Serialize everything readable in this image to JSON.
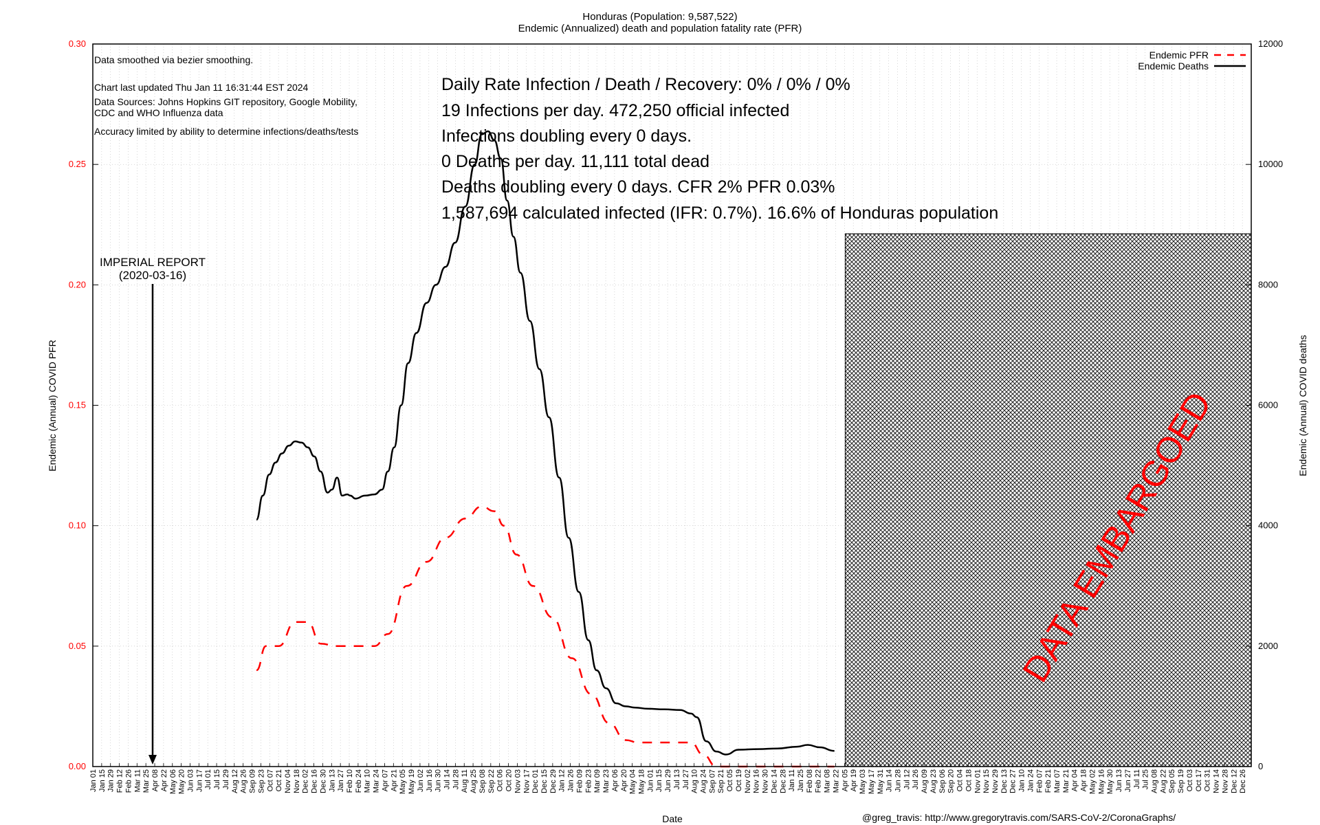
{
  "title": {
    "line1": "Honduras (Population: 9,587,522)",
    "line2": "Endemic (Annualized) death and population fatality rate (PFR)"
  },
  "notes": {
    "smoothing": "Data smoothed via bezier smoothing.",
    "updated": "Chart last updated Thu Jan 11 16:31:44 EST 2024",
    "sources_1": "Data Sources: Johns Hopkins GIT repository, Google Mobility,",
    "sources_2": "CDC and WHO Influenza data",
    "accuracy": "Accuracy limited by ability to determine infections/deaths/tests"
  },
  "stats": [
    "Daily Rate Infection / Death / Recovery: 0% / 0% / 0%",
    "19 Infections per day.  472,250 official infected",
    "Infections doubling every 0 days.",
    "0 Deaths per day.  11,111 total dead",
    "Deaths doubling every 0 days.  CFR 2%  PFR 0.03%",
    "1,587,694 calculated infected (IFR: 0.7%).  16.6% of Honduras population"
  ],
  "annotation": {
    "line1": "IMPERIAL REPORT",
    "line2": "(2020-03-16)"
  },
  "embargo_label": "DATA EMBARGOED",
  "credit": "@greg_travis: http://www.gregorytravis.com/SARS-CoV-2/CoronaGraphs/",
  "colors": {
    "pfr": "#ff0000",
    "deaths": "#000000",
    "left_axis_ticks": "#ff0000",
    "embargo_text": "#ff0000",
    "grid": "#bbbbbb"
  },
  "chart_data": {
    "type": "line",
    "title": "Honduras (Population: 9,587,522)",
    "subtitle": "Endemic (Annualized) death and population fatality rate (PFR)",
    "xlabel": "Date",
    "ylabel_left": "Endemic (Annual) COVID PFR",
    "ylabel_right": "Endemic (Annual) COVID deaths",
    "ylim_left": [
      0,
      0.3
    ],
    "ylim_right": [
      0,
      12000
    ],
    "yticks_left": [
      "0.00",
      "0.05",
      "0.10",
      "0.15",
      "0.20",
      "0.25",
      "0.30"
    ],
    "yticks_right": [
      "0",
      "2000",
      "4000",
      "6000",
      "8000",
      "10000",
      "12000"
    ],
    "xlim": [
      "2020-01-01",
      "2024-12-31"
    ],
    "grid": true,
    "legend_position": "top-right",
    "embargo_start": "2023-04-01",
    "series": [
      {
        "name": "Endemic PFR",
        "axis": "left",
        "style": "dashed",
        "x": [
          "2020-09-15",
          "2020-09-30",
          "2020-10-20",
          "2020-11-15",
          "2020-12-05",
          "2020-12-25",
          "2021-01-20",
          "2021-02-20",
          "2021-03-20",
          "2021-04-10",
          "2021-05-10",
          "2021-06-10",
          "2021-07-10",
          "2021-08-10",
          "2021-09-05",
          "2021-09-25",
          "2021-10-10",
          "2021-10-30",
          "2021-11-25",
          "2021-12-25",
          "2022-01-25",
          "2022-02-25",
          "2022-03-25",
          "2022-04-20",
          "2022-05-10",
          "2022-06-01",
          "2022-07-01",
          "2022-08-01",
          "2022-08-20",
          "2022-09-10",
          "2022-10-01",
          "2022-11-01",
          "2022-12-01",
          "2023-01-01",
          "2023-02-01",
          "2023-03-15"
        ],
        "values": [
          0.04,
          0.05,
          0.05,
          0.06,
          0.06,
          0.051,
          0.05,
          0.05,
          0.05,
          0.055,
          0.075,
          0.085,
          0.095,
          0.103,
          0.108,
          0.106,
          0.1,
          0.088,
          0.075,
          0.062,
          0.045,
          0.03,
          0.018,
          0.011,
          0.01,
          0.01,
          0.01,
          0.01,
          0.005,
          0.0,
          0.0,
          0.0,
          0.0,
          0.0,
          0.0,
          0.0
        ]
      },
      {
        "name": "Endemic Deaths",
        "axis": "right",
        "style": "solid",
        "x": [
          "2020-09-15",
          "2020-09-25",
          "2020-10-05",
          "2020-10-15",
          "2020-10-25",
          "2020-11-05",
          "2020-11-15",
          "2020-11-25",
          "2020-12-05",
          "2020-12-15",
          "2020-12-25",
          "2021-01-05",
          "2021-01-12",
          "2021-01-20",
          "2021-01-28",
          "2021-02-05",
          "2021-02-10",
          "2021-02-18",
          "2021-03-05",
          "2021-03-20",
          "2021-04-01",
          "2021-04-10",
          "2021-04-20",
          "2021-05-01",
          "2021-05-12",
          "2021-05-25",
          "2021-06-10",
          "2021-06-25",
          "2021-07-10",
          "2021-07-25",
          "2021-08-10",
          "2021-08-25",
          "2021-09-05",
          "2021-09-15",
          "2021-09-25",
          "2021-10-05",
          "2021-10-15",
          "2021-10-25",
          "2021-11-05",
          "2021-11-20",
          "2021-12-05",
          "2021-12-20",
          "2022-01-05",
          "2022-01-20",
          "2022-02-05",
          "2022-02-20",
          "2022-03-05",
          "2022-03-20",
          "2022-04-05",
          "2022-04-20",
          "2022-05-05",
          "2022-05-25",
          "2022-06-20",
          "2022-07-15",
          "2022-08-01",
          "2022-08-10",
          "2022-08-25",
          "2022-09-10",
          "2022-09-25",
          "2022-10-15",
          "2022-11-15",
          "2022-12-15",
          "2023-01-15",
          "2023-02-01",
          "2023-02-20",
          "2023-03-15"
        ],
        "values": [
          4100,
          4500,
          4850,
          5050,
          5200,
          5330,
          5400,
          5380,
          5300,
          5150,
          4900,
          4550,
          4600,
          4800,
          4500,
          4520,
          4500,
          4450,
          4500,
          4520,
          4600,
          4900,
          5300,
          6000,
          6700,
          7200,
          7700,
          8000,
          8300,
          8700,
          9300,
          10000,
          10500,
          10550,
          10400,
          10100,
          9400,
          8800,
          8200,
          7400,
          6600,
          5800,
          4800,
          3800,
          2900,
          2100,
          1600,
          1300,
          1050,
          1000,
          980,
          960,
          950,
          940,
          880,
          820,
          420,
          250,
          200,
          280,
          290,
          300,
          330,
          360,
          320,
          260
        ]
      }
    ],
    "x_tick_labels": [
      "Jan 01",
      "Jan 15",
      "Jan 29",
      "Feb 12",
      "Feb 26",
      "Mar 11",
      "Mar 25",
      "Apr 08",
      "Apr 22",
      "May 06",
      "May 20",
      "Jun 03",
      "Jun 17",
      "Jul 01",
      "Jul 15",
      "Jul 29",
      "Aug 12",
      "Aug 26",
      "Sep 09",
      "Sep 23",
      "Oct 07",
      "Oct 21",
      "Nov 04",
      "Nov 18",
      "Dec 02",
      "Dec 16",
      "Dec 30",
      "Jan 13",
      "Jan 27",
      "Feb 10",
      "Feb 24",
      "Mar 10",
      "Mar 24",
      "Apr 07",
      "Apr 21",
      "May 05",
      "May 19",
      "Jun 02",
      "Jun 16",
      "Jun 30",
      "Jul 14",
      "Jul 28",
      "Aug 11",
      "Aug 25",
      "Sep 08",
      "Sep 22",
      "Oct 06",
      "Oct 20",
      "Nov 03",
      "Nov 17",
      "Dec 01",
      "Dec 15",
      "Dec 29",
      "Jan 12",
      "Jan 26",
      "Feb 09",
      "Feb 23",
      "Mar 09",
      "Mar 23",
      "Apr 06",
      "Apr 20",
      "May 04",
      "May 18",
      "Jun 01",
      "Jun 15",
      "Jun 29",
      "Jul 13",
      "Jul 27",
      "Aug 10",
      "Aug 24",
      "Sep 07",
      "Sep 21",
      "Oct 05",
      "Oct 19",
      "Nov 02",
      "Nov 16",
      "Nov 30",
      "Dec 14",
      "Dec 28",
      "Jan 11",
      "Jan 25",
      "Feb 08",
      "Feb 22",
      "Mar 08",
      "Mar 22",
      "Apr 05",
      "Apr 19",
      "May 03",
      "May 17",
      "May 31",
      "Jun 14",
      "Jun 28",
      "Jul 12",
      "Jul 26",
      "Aug 09",
      "Aug 23",
      "Sep 06",
      "Sep 20",
      "Oct 04",
      "Oct 18",
      "Nov 01",
      "Nov 15",
      "Nov 29",
      "Dec 13",
      "Dec 27",
      "Jan 10",
      "Jan 24",
      "Feb 07",
      "Feb 21",
      "Mar 07",
      "Mar 21",
      "Apr 04",
      "Apr 18",
      "May 02",
      "May 16",
      "May 30",
      "Jun 13",
      "Jun 27",
      "Jul 11",
      "Jul 25",
      "Aug 08",
      "Aug 22",
      "Sep 05",
      "Sep 19",
      "Oct 03",
      "Oct 17",
      "Oct 31",
      "Nov 14",
      "Nov 28",
      "Dec 12",
      "Dec 26"
    ]
  }
}
